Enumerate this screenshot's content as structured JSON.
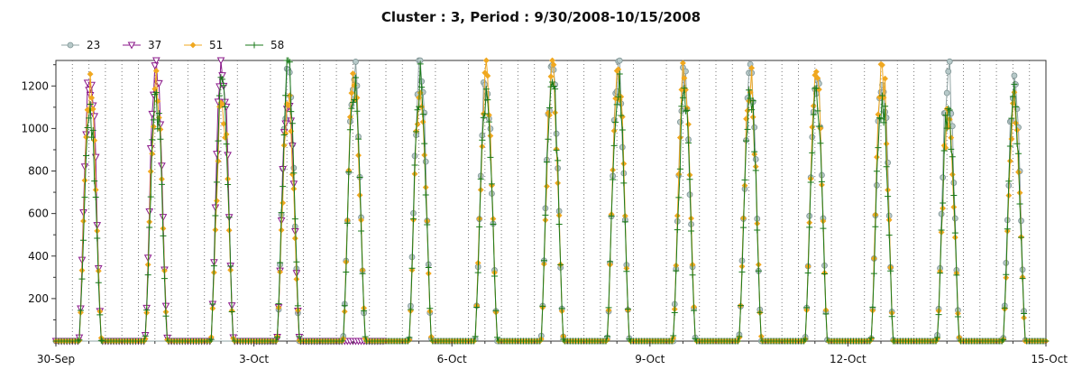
{
  "chart_data": {
    "type": "line",
    "title": "Cluster : 3, Period : 9/30/2008-10/15/2008",
    "xlabel": "",
    "ylabel": "",
    "x_range_days": [
      0,
      15
    ],
    "x_ticks": [
      {
        "day": 0,
        "label": "30-Sep"
      },
      {
        "day": 3,
        "label": "3-Oct"
      },
      {
        "day": 6,
        "label": "6-Oct"
      },
      {
        "day": 9,
        "label": "9-Oct"
      },
      {
        "day": 12,
        "label": "12-Oct"
      },
      {
        "day": 15,
        "label": "15-Oct"
      }
    ],
    "ylim": [
      0,
      1320
    ],
    "y_ticks": [
      200,
      400,
      600,
      800,
      1000,
      1200
    ],
    "grid": "dotted vertical lines at 6-hour intervals",
    "legend_position": "top-left",
    "series": [
      {
        "name": "23",
        "color": "#8fa3a3",
        "marker": "circle",
        "active_days": [
          3,
          4,
          5,
          6,
          7,
          8,
          9,
          10,
          11,
          12,
          13,
          14
        ],
        "daily_peaks": [
          {
            "day": 3,
            "peak": 1230
          },
          {
            "day": 4,
            "peak": 1260
          },
          {
            "day": 5,
            "peak": 1300
          },
          {
            "day": 6,
            "peak": 1250
          },
          {
            "day": 7,
            "peak": 1310
          },
          {
            "day": 8,
            "peak": 1250
          },
          {
            "day": 9,
            "peak": 1240
          },
          {
            "day": 10,
            "peak": 1260
          },
          {
            "day": 11,
            "peak": 1250
          },
          {
            "day": 12,
            "peak": 1290
          },
          {
            "day": 13,
            "peak": 1250
          },
          {
            "day": 14,
            "peak": 1250
          }
        ]
      },
      {
        "name": "37",
        "color": "#8b1a8b",
        "marker": "triangle-down",
        "active_days": [
          0,
          1,
          2,
          3
        ],
        "daily_peaks": [
          {
            "day": 0,
            "peak": 1260
          },
          {
            "day": 1,
            "peak": 1290
          },
          {
            "day": 2,
            "peak": 1320
          },
          {
            "day": 3,
            "peak": 1190
          }
        ]
      },
      {
        "name": "51",
        "color": "#f0a820",
        "marker": "diamond",
        "active_days": [
          0,
          1,
          2,
          3,
          4,
          5,
          6,
          7,
          8,
          9,
          10,
          11,
          12,
          13,
          14
        ],
        "daily_peaks": [
          {
            "day": 0,
            "peak": 1190
          },
          {
            "day": 1,
            "peak": 1180
          },
          {
            "day": 2,
            "peak": 1150
          },
          {
            "day": 3,
            "peak": 1110
          },
          {
            "day": 4,
            "peak": 1230
          },
          {
            "day": 5,
            "peak": 1220
          },
          {
            "day": 6,
            "peak": 1250
          },
          {
            "day": 7,
            "peak": 1270
          },
          {
            "day": 8,
            "peak": 1270
          },
          {
            "day": 9,
            "peak": 1240
          },
          {
            "day": 10,
            "peak": 1250
          },
          {
            "day": 11,
            "peak": 1230
          },
          {
            "day": 12,
            "peak": 1280
          },
          {
            "day": 13,
            "peak": 1100
          },
          {
            "day": 14,
            "peak": 1090
          }
        ]
      },
      {
        "name": "58",
        "color": "#1a7a1a",
        "marker": "plus",
        "active_days": [
          0,
          1,
          2,
          3,
          4,
          5,
          6,
          7,
          8,
          9,
          10,
          11,
          12,
          13,
          14
        ],
        "daily_peaks": [
          {
            "day": 0,
            "peak": 1050
          },
          {
            "day": 1,
            "peak": 1120
          },
          {
            "day": 2,
            "peak": 1250
          },
          {
            "day": 3,
            "peak": 1280
          },
          {
            "day": 4,
            "peak": 1180
          },
          {
            "day": 5,
            "peak": 1200
          },
          {
            "day": 6,
            "peak": 1180
          },
          {
            "day": 7,
            "peak": 1250
          },
          {
            "day": 8,
            "peak": 1230
          },
          {
            "day": 9,
            "peak": 1130
          },
          {
            "day": 10,
            "peak": 1200
          },
          {
            "day": 11,
            "peak": 1180
          },
          {
            "day": 12,
            "peak": 1150
          },
          {
            "day": 13,
            "peak": 1100
          },
          {
            "day": 14,
            "peak": 1130
          }
        ]
      }
    ]
  }
}
